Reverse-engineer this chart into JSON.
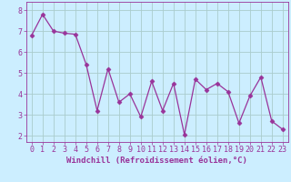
{
  "x": [
    0,
    1,
    2,
    3,
    4,
    5,
    6,
    7,
    8,
    9,
    10,
    11,
    12,
    13,
    14,
    15,
    16,
    17,
    18,
    19,
    20,
    21,
    22,
    23
  ],
  "y": [
    6.8,
    7.8,
    7.0,
    6.9,
    6.85,
    5.4,
    3.2,
    5.2,
    3.6,
    4.0,
    2.9,
    4.6,
    3.2,
    4.5,
    2.05,
    4.7,
    4.2,
    4.5,
    4.1,
    2.6,
    3.9,
    4.8,
    2.7,
    2.3
  ],
  "line_color": "#993399",
  "marker": "D",
  "marker_size": 2.5,
  "bg_color": "#cceeff",
  "grid_color": "#aacccc",
  "xlabel": "Windchill (Refroidissement éolien,°C)",
  "ylabel_ticks": [
    2,
    3,
    4,
    5,
    6,
    7,
    8
  ],
  "xlim": [
    -0.5,
    23.5
  ],
  "ylim": [
    1.7,
    8.4
  ],
  "xticks": [
    0,
    1,
    2,
    3,
    4,
    5,
    6,
    7,
    8,
    9,
    10,
    11,
    12,
    13,
    14,
    15,
    16,
    17,
    18,
    19,
    20,
    21,
    22,
    23
  ],
  "label_fontsize": 6.5,
  "tick_fontsize": 6,
  "axis_color": "#993399"
}
